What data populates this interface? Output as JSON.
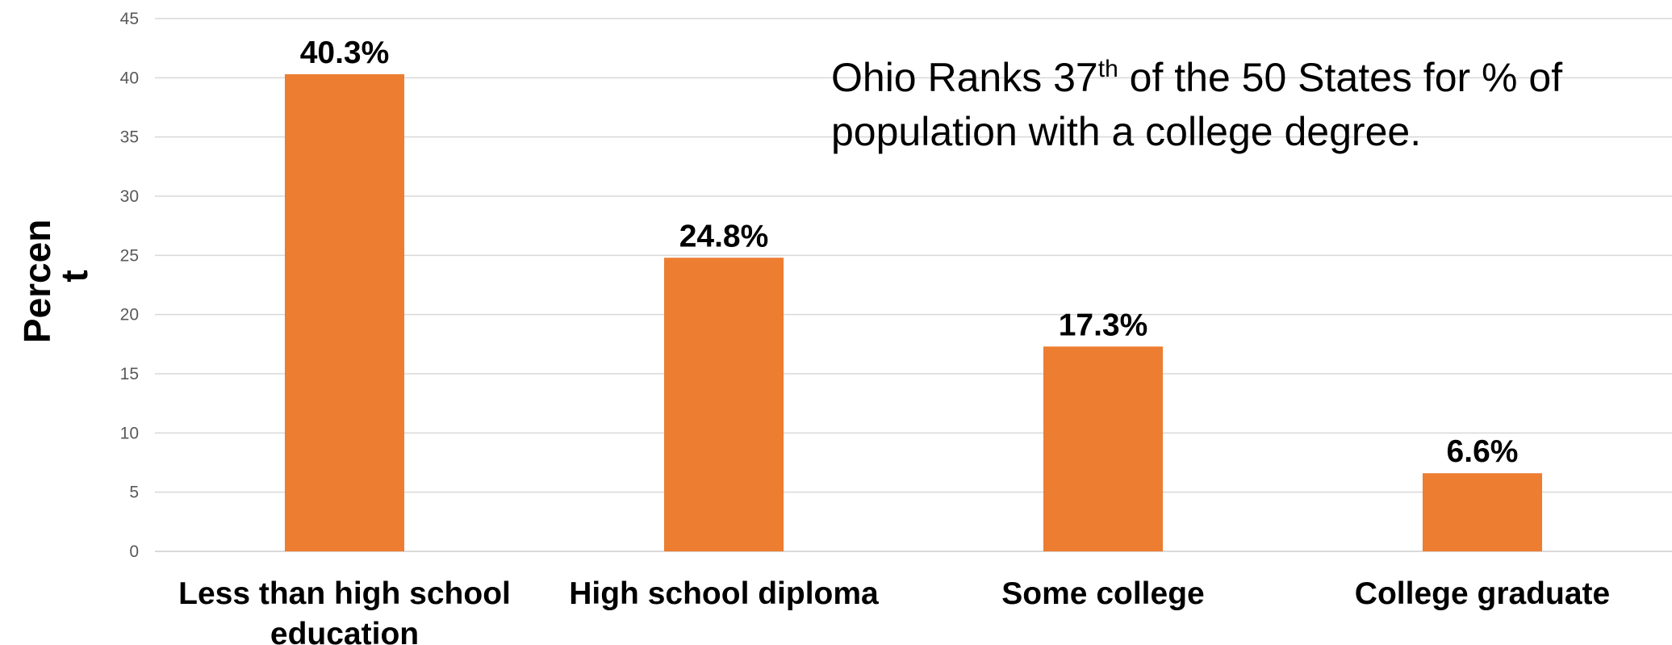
{
  "chart_data": {
    "type": "bar",
    "title": "",
    "categories": [
      "Less than high school education",
      "High school diploma",
      "Some college",
      "College graduate"
    ],
    "category_lines": [
      [
        "Less than high school",
        "education"
      ],
      [
        "High school diploma"
      ],
      [
        "Some college"
      ],
      [
        "College graduate"
      ]
    ],
    "values": [
      40.3,
      24.8,
      17.3,
      6.6
    ],
    "data_labels": [
      "40.3%",
      "24.8%",
      "17.3%",
      "6.6%"
    ],
    "ylabel_lines": [
      "Percen",
      "t"
    ],
    "xlabel": "",
    "ylim": [
      0,
      45
    ],
    "yticks": [
      0,
      5,
      10,
      15,
      20,
      25,
      30,
      35,
      40,
      45
    ],
    "grid": true,
    "legend": "none",
    "bar_color": "#ED7D31",
    "grid_color": "#D9D9D9",
    "annotation": {
      "line1_before": "Ohio Ranks 37",
      "line1_sup": "th",
      "line1_after": " of the 50 States for % of",
      "line2": "population with a college degree."
    }
  }
}
